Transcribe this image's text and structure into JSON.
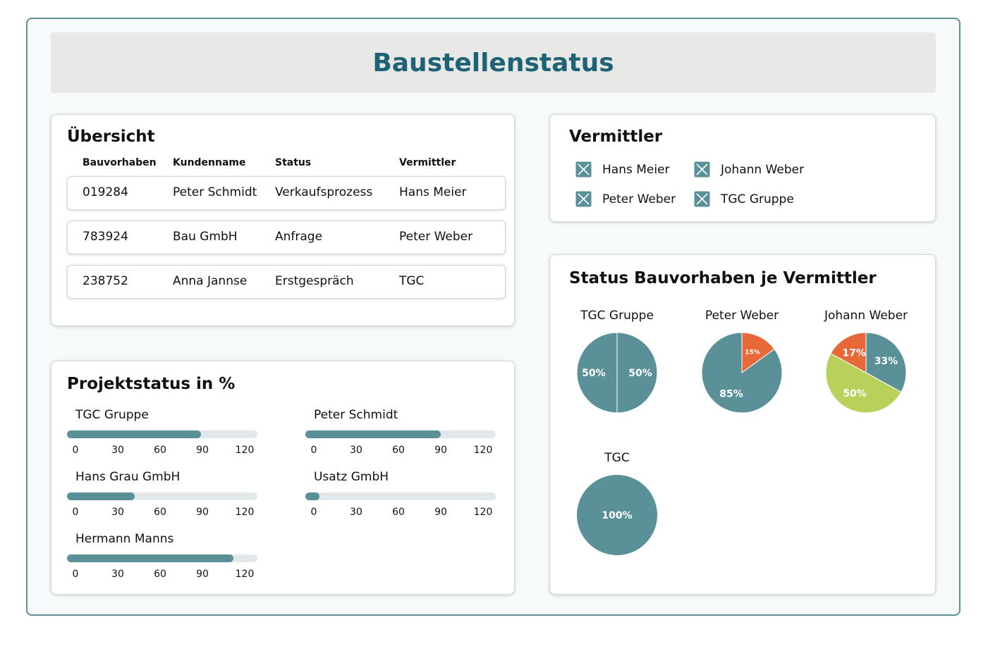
{
  "page_title": "Baustellenstatus",
  "overview": {
    "title": "Übersicht",
    "columns": [
      "Bauvorhaben",
      "Kundenname",
      "Status",
      "Vermittler"
    ],
    "rows": [
      [
        "019284",
        "Peter Schmidt",
        "Verkaufsprozess",
        "Hans Meier"
      ],
      [
        "783924",
        "Bau GmbH",
        "Anfrage",
        "Peter Weber"
      ],
      [
        "238752",
        "Anna Jannse",
        "Erstgespräch",
        "TGC"
      ]
    ]
  },
  "vermittler": {
    "title": "Vermittler",
    "items": [
      {
        "label": "Hans Meier",
        "checked": true
      },
      {
        "label": "Johann Weber",
        "checked": true
      },
      {
        "label": "Peter Weber",
        "checked": true
      },
      {
        "label": "TGC Gruppe",
        "checked": true
      }
    ],
    "checkbox_color": "#5a9198"
  },
  "projektstatus": {
    "title": "Projektstatus in %",
    "ticks": [
      "0",
      "30",
      "60",
      "90",
      "120"
    ],
    "axis_max": 135,
    "items": [
      {
        "label": "TGC Gruppe",
        "value": 95
      },
      {
        "label": "Peter Schmidt",
        "value": 96
      },
      {
        "label": "Hans Grau GmbH",
        "value": 48
      },
      {
        "label": "Usatz GmbH",
        "value": 10
      },
      {
        "label": "Hermann Manns",
        "value": 118
      }
    ],
    "fill_color": "#5a9198",
    "track_color": "#e2e7ea"
  },
  "status_charts": {
    "title": "Status Bauvorhaben je Vermittler",
    "colors": {
      "teal": "#5a9198",
      "orange": "#e8683a",
      "lime": "#b8d15a"
    },
    "charts": [
      {
        "name": "TGC Gruppe",
        "slices": [
          {
            "value": 50,
            "label": "50%",
            "color": "teal"
          },
          {
            "value": 50,
            "label": "50%",
            "color": "teal"
          }
        ]
      },
      {
        "name": "Peter Weber",
        "slices": [
          {
            "value": 15,
            "label": "15%",
            "color": "orange"
          },
          {
            "value": 85,
            "label": "85%",
            "color": "teal"
          }
        ]
      },
      {
        "name": "Johann Weber",
        "slices": [
          {
            "value": 33,
            "label": "33%",
            "color": "teal"
          },
          {
            "value": 50,
            "label": "50%",
            "color": "lime"
          },
          {
            "value": 17,
            "label": "17%",
            "color": "orange"
          }
        ]
      },
      {
        "name": "TGC",
        "slices": [
          {
            "value": 100,
            "label": "100%",
            "color": "teal"
          }
        ]
      }
    ]
  }
}
